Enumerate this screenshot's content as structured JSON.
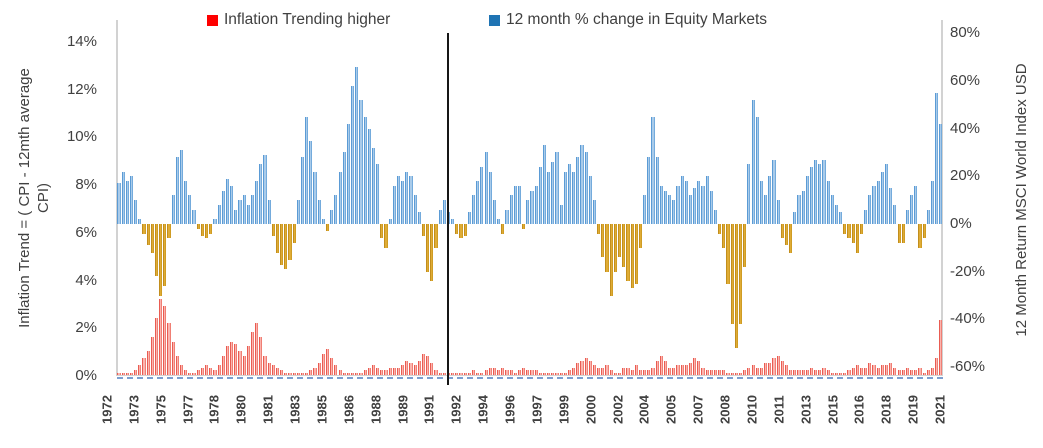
{
  "legend": {
    "items": [
      {
        "label": "Inflation Trending higher",
        "color": "#fe0000"
      },
      {
        "label": "12 month % change in Equity Markets",
        "color": "#1f74b4"
      }
    ]
  },
  "left_axis": {
    "title_line1": "Inflation Trend = ( CPI - 12mth average",
    "title_line2": "CPI)",
    "ticks": [
      {
        "label": "14%",
        "value": 14
      },
      {
        "label": "12%",
        "value": 12
      },
      {
        "label": "10%",
        "value": 10
      },
      {
        "label": "8%",
        "value": 8
      },
      {
        "label": "6%",
        "value": 6
      },
      {
        "label": "4%",
        "value": 4
      },
      {
        "label": "2%",
        "value": 2
      },
      {
        "label": "0%",
        "value": 0
      }
    ]
  },
  "right_axis": {
    "title": "12 Month Return MSCI World Index USD",
    "ticks": [
      {
        "label": "80%",
        "value": 80
      },
      {
        "label": "60%",
        "value": 60
      },
      {
        "label": "40%",
        "value": 40
      },
      {
        "label": "20%",
        "value": 20
      },
      {
        "label": "0%",
        "value": 0
      },
      {
        "label": "-20%",
        "value": -20
      },
      {
        "label": "-40%",
        "value": -40
      },
      {
        "label": "-60%",
        "value": -60
      }
    ]
  },
  "x_axis": {
    "labels": [
      "1972",
      "1973",
      "1975",
      "1977",
      "1978",
      "1980",
      "1981",
      "1983",
      "1985",
      "1986",
      "1988",
      "1989",
      "1991",
      "1992",
      "1994",
      "1996",
      "1997",
      "1999",
      "2000",
      "2002",
      "2004",
      "2005",
      "2007",
      "2008",
      "2010",
      "2011",
      "2013",
      "2015",
      "2016",
      "2018",
      "2019",
      "2021"
    ]
  },
  "annotations": {
    "divider": {
      "description": "vertical black line splitting the chart near Jan 1992",
      "x_year": 1992
    },
    "zero_line": {
      "description": "dashed light-blue line along 0% of the left (inflation) axis"
    }
  },
  "colors": {
    "equity_positive_fill": "#a9cbea",
    "equity_positive_edge": "#5b9bd5",
    "equity_negative_fill": "#dfac35",
    "equity_negative_edge": "#c28e1d",
    "inflation_fill": "#fbb4ae",
    "inflation_edge": "#e95c52",
    "legend_red": "#fe0000",
    "legend_blue": "#1f74b4",
    "axis_text": "#404040",
    "axis_line": "#d2d2d2",
    "divider_black": "#161616",
    "zero_dash_blue": "#7c9fd0"
  },
  "chart_data": {
    "type": "bar",
    "sampling": "quarterly estimates read from monthly bars",
    "x_start": 1972.0,
    "x_end": 2021.5,
    "left_ylim": [
      0,
      14
    ],
    "right_ylim": [
      -60,
      80
    ],
    "grid": false,
    "legend_position": "top",
    "series": [
      {
        "name": "12 month % change in Equity Markets",
        "axis": "right",
        "unit": "%",
        "values": [
          17,
          22,
          18,
          20,
          10,
          2,
          -4,
          -9,
          -12,
          -22,
          -30,
          -26,
          -6,
          12,
          28,
          31,
          18,
          12,
          6,
          -2,
          -5,
          -6,
          -4,
          2,
          8,
          14,
          19,
          16,
          6,
          10,
          12,
          8,
          12,
          18,
          25,
          29,
          10,
          -5,
          -12,
          -17,
          -19,
          -15,
          -8,
          10,
          28,
          45,
          35,
          22,
          10,
          2,
          -3,
          6,
          12,
          22,
          30,
          42,
          58,
          66,
          52,
          45,
          40,
          32,
          25,
          -6,
          -10,
          2,
          16,
          20,
          18,
          22,
          20,
          12,
          5,
          -5,
          -20,
          -24,
          -10,
          6,
          10,
          5,
          2,
          -4,
          -6,
          -5,
          5,
          12,
          18,
          24,
          30,
          22,
          10,
          2,
          -4,
          6,
          12,
          16,
          16,
          -2,
          10,
          14,
          16,
          24,
          33,
          22,
          26,
          30,
          8,
          22,
          25,
          22,
          28,
          33,
          30,
          20,
          10,
          -4,
          -14,
          -20,
          -30,
          -20,
          -14,
          -18,
          -24,
          -27,
          -25,
          -10,
          12,
          28,
          45,
          28,
          16,
          14,
          12,
          10,
          16,
          20,
          18,
          12,
          15,
          18,
          16,
          20,
          14,
          6,
          -4,
          -10,
          -25,
          -42,
          -52,
          -42,
          -18,
          25,
          52,
          45,
          18,
          12,
          20,
          27,
          10,
          -6,
          -9,
          -12,
          5,
          12,
          14,
          20,
          24,
          27,
          25,
          27,
          18,
          12,
          8,
          5,
          -4,
          -6,
          -8,
          -12,
          -4,
          6,
          12,
          16,
          18,
          22,
          25,
          15,
          8,
          -8,
          -8,
          6,
          12,
          16,
          -10,
          -6,
          6,
          18,
          55,
          42
        ]
      },
      {
        "name": "Inflation Trending higher",
        "axis": "left",
        "unit": "%",
        "values": [
          0.1,
          0.1,
          0.1,
          0.1,
          0.2,
          0.4,
          0.7,
          1.0,
          1.6,
          2.4,
          3.2,
          2.9,
          2.2,
          1.4,
          0.8,
          0.4,
          0.2,
          0.1,
          0.1,
          0.2,
          0.3,
          0.4,
          0.3,
          0.2,
          0.4,
          0.8,
          1.2,
          1.4,
          1.3,
          1.0,
          0.8,
          1.2,
          1.8,
          2.2,
          1.6,
          0.8,
          0.5,
          0.4,
          0.3,
          0.2,
          0.1,
          0.1,
          0.1,
          0.1,
          0.1,
          0.1,
          0.2,
          0.3,
          0.5,
          0.9,
          1.1,
          0.7,
          0.4,
          0.2,
          0.1,
          0.1,
          0.1,
          0.1,
          0.1,
          0.2,
          0.3,
          0.4,
          0.3,
          0.2,
          0.2,
          0.3,
          0.3,
          0.3,
          0.4,
          0.6,
          0.5,
          0.4,
          0.6,
          0.9,
          0.8,
          0.5,
          0.2,
          0.1,
          0.1,
          0.1,
          0.1,
          0.1,
          0.1,
          0.1,
          0.1,
          0.2,
          0.1,
          0.1,
          0.2,
          0.3,
          0.3,
          0.2,
          0.3,
          0.2,
          0.2,
          0.1,
          0.2,
          0.3,
          0.2,
          0.2,
          0.2,
          0.1,
          0.1,
          0.1,
          0.1,
          0.1,
          0.1,
          0.1,
          0.2,
          0.3,
          0.5,
          0.6,
          0.7,
          0.6,
          0.4,
          0.3,
          0.3,
          0.4,
          0.2,
          0.1,
          0.1,
          0.3,
          0.3,
          0.2,
          0.4,
          0.2,
          0.2,
          0.2,
          0.3,
          0.6,
          0.8,
          0.6,
          0.3,
          0.3,
          0.4,
          0.4,
          0.4,
          0.5,
          0.7,
          0.6,
          0.3,
          0.2,
          0.2,
          0.2,
          0.2,
          0.2,
          0.1,
          0.1,
          0.1,
          0.1,
          0.2,
          0.3,
          0.4,
          0.3,
          0.3,
          0.5,
          0.5,
          0.7,
          0.8,
          0.6,
          0.4,
          0.2,
          0.2,
          0.2,
          0.2,
          0.2,
          0.3,
          0.2,
          0.2,
          0.3,
          0.2,
          0.1,
          0.1,
          0.1,
          0.1,
          0.2,
          0.3,
          0.4,
          0.3,
          0.3,
          0.5,
          0.4,
          0.3,
          0.4,
          0.4,
          0.5,
          0.3,
          0.2,
          0.2,
          0.3,
          0.2,
          0.2,
          0.3,
          0.1,
          0.2,
          0.3,
          0.7,
          2.3
        ]
      }
    ]
  }
}
